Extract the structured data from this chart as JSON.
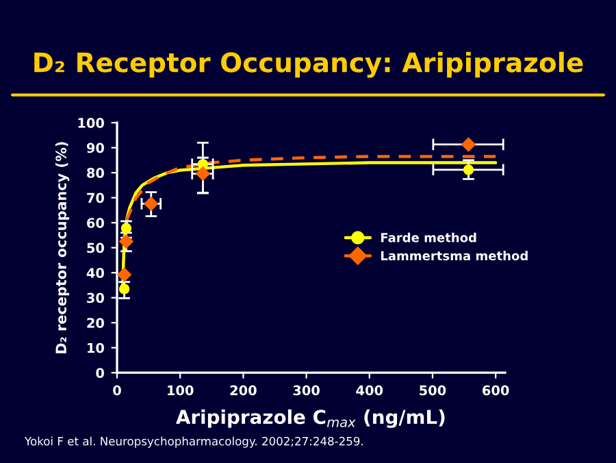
{
  "chart_data": {
    "type": "scatter",
    "title": "D₂ Receptor Occupancy: Aripiprazole",
    "xlabel": "Aripiprazole C$_{max}$ (ng/mL)",
    "ylabel": "D₂ receptor occupancy (%)",
    "annotations": [
      "Yokoi F et al. Neuropsychopharmacology. 2002;27:248-259."
    ],
    "xlim": [
      0,
      615
    ],
    "xticks": [
      0,
      100,
      200,
      300,
      400,
      500,
      600
    ],
    "ylim": [
      0,
      100
    ],
    "yticks": [
      0,
      10,
      20,
      30,
      40,
      50,
      60,
      70,
      80,
      90,
      100
    ],
    "grid": false,
    "legend": "right",
    "series": [
      {
        "type": "line",
        "color": "#ffff00",
        "line_style": "solid",
        "marker": "none",
        "x": [
          9,
          11,
          13,
          16,
          20,
          30,
          40,
          60,
          80,
          100,
          150,
          200,
          300,
          400,
          600
        ],
        "values": [
          35,
          50,
          57,
          62,
          66,
          72,
          75,
          78,
          80,
          81,
          82,
          83,
          83.5,
          84,
          84
        ]
      },
      {
        "type": "line",
        "color": "#ff6600",
        "line_style": "dashed",
        "marker": "none",
        "x": [
          15,
          20,
          30,
          50,
          75,
          100,
          150,
          200,
          300,
          400,
          600
        ],
        "values": [
          61,
          64,
          70,
          76,
          79.5,
          82,
          84,
          85,
          86,
          86.5,
          86.5
        ]
      },
      {
        "name": "Farde method",
        "color": "#ffff00",
        "marker": "circle",
        "x": [
          11.5,
          14.6,
          136,
          557
        ],
        "values": [
          33.5,
          57.8,
          83.4,
          81.2
        ],
        "errors": [
          [
            29.8,
            36.3
          ],
          [
            54,
            60.6
          ],
          [
            72,
            92
          ],
          [
            77.5,
            85
          ]
        ],
        "xerrors": [
          null,
          null,
          [
            119,
            152
          ],
          [
            501,
            612
          ]
        ]
      },
      {
        "name": "Lammertsma method",
        "color": "#ff6600",
        "marker": "diamond",
        "x": [
          11.5,
          14.6,
          54,
          136,
          557
        ],
        "values": [
          39.2,
          52.5,
          67.6,
          79.6,
          91.3
        ],
        "errors": [
          null,
          [
            48.6,
            56
          ],
          [
            62.6,
            72.2
          ],
          [
            71.8,
            86
          ],
          null
        ],
        "xerrors": [
          null,
          null,
          [
            39,
            69
          ],
          [
            119,
            152
          ],
          [
            501,
            612
          ]
        ]
      }
    ]
  }
}
